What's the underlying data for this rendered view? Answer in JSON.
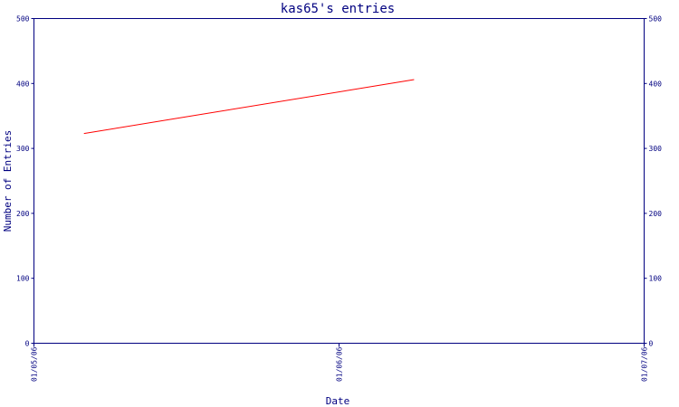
{
  "chart_data": {
    "type": "line",
    "title": "kas65's entries",
    "xlabel": "Date",
    "ylabel": "Number of Entries",
    "x_ticks": [
      "01/05/06",
      "01/06/06",
      "01/07/06"
    ],
    "ylim": [
      0,
      500
    ],
    "y_ticks": [
      0,
      100,
      200,
      300,
      400,
      500
    ],
    "xlim": [
      "2006-05-01",
      "2006-07-01"
    ],
    "grid": false,
    "series": [
      {
        "color": "#ff0000",
        "points": [
          {
            "x": "2006-05-06",
            "y": 323
          },
          {
            "x": "2006-06-08",
            "y": 406
          }
        ]
      }
    ],
    "colors": {
      "axis": "#000080",
      "line": "#ff0000",
      "background": "#ffffff"
    }
  }
}
